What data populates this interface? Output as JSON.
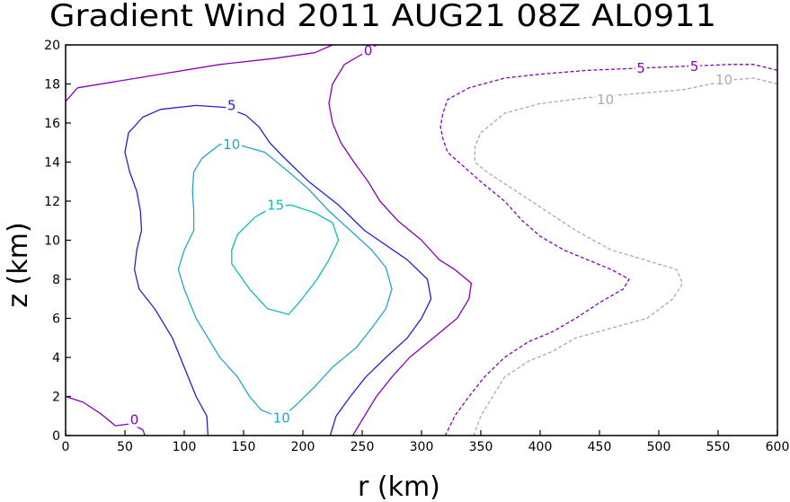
{
  "chart_data": {
    "type": "contour",
    "title": "Gradient Wind 2011 AUG21 08Z  AL0911",
    "xlabel": "r (km)",
    "ylabel": "z (km)",
    "xlim": [
      0,
      600
    ],
    "ylim": [
      0,
      20
    ],
    "x_ticks": [
      "0",
      "50",
      "100",
      "150",
      "200",
      "250",
      "300",
      "350",
      "400",
      "450",
      "500",
      "550",
      "600"
    ],
    "y_ticks": [
      "0",
      "2",
      "4",
      "6",
      "8",
      "10",
      "12",
      "14",
      "16",
      "18",
      "20"
    ],
    "contours": [
      {
        "level": "0",
        "style": "solid",
        "color": "#8800bb",
        "segment": "upper-left",
        "points": [
          [
            0,
            17.1
          ],
          [
            10,
            17.8
          ],
          [
            40,
            18.1
          ],
          [
            80,
            18.5
          ],
          [
            130,
            19.0
          ],
          [
            175,
            19.3
          ],
          [
            210,
            19.6
          ],
          [
            225,
            20.0
          ]
        ],
        "label_at": [
          null
        ]
      },
      {
        "level": "0",
        "style": "solid",
        "color": "#8800bb",
        "segment": "lower-left",
        "points": [
          [
            0,
            2.0
          ],
          [
            15,
            1.7
          ],
          [
            30,
            1.1
          ],
          [
            42,
            0.5
          ],
          [
            55,
            0.6
          ],
          [
            65,
            0.3
          ],
          [
            67,
            0
          ]
        ],
        "label_at": [
          [
            58,
            0.8
          ]
        ]
      },
      {
        "level": "0",
        "style": "solid",
        "color": "#8800bb",
        "segment": "outer",
        "points": [
          [
            262,
            20.0
          ],
          [
            255,
            19.7
          ],
          [
            235,
            19.0
          ],
          [
            225,
            18.0
          ],
          [
            222,
            17.0
          ],
          [
            225,
            16.0
          ],
          [
            232,
            15.0
          ],
          [
            243,
            14.0
          ],
          [
            255,
            13.0
          ],
          [
            265,
            12.0
          ],
          [
            280,
            11.0
          ],
          [
            300,
            10.0
          ],
          [
            315,
            9.0
          ],
          [
            328,
            8.5
          ],
          [
            342,
            7.8
          ],
          [
            340,
            7.0
          ],
          [
            330,
            6.0
          ],
          [
            310,
            5.0
          ],
          [
            290,
            4.0
          ],
          [
            275,
            3.0
          ],
          [
            262,
            2.0
          ],
          [
            252,
            1.0
          ],
          [
            242,
            0
          ]
        ],
        "label_at": [
          [
            255,
            19.7
          ]
        ]
      },
      {
        "level": "5",
        "style": "solid",
        "color": "#2222cc",
        "points": [
          [
            120,
            0
          ],
          [
            119,
            1.0
          ],
          [
            110,
            2.0
          ],
          [
            100,
            3.5
          ],
          [
            90,
            5.0
          ],
          [
            75,
            6.5
          ],
          [
            62,
            7.5
          ],
          [
            58,
            8.5
          ],
          [
            60,
            9.5
          ],
          [
            64,
            10.5
          ],
          [
            63,
            11.5
          ],
          [
            60,
            12.5
          ],
          [
            54,
            13.5
          ],
          [
            50,
            14.5
          ],
          [
            53,
            15.5
          ],
          [
            65,
            16.3
          ],
          [
            80,
            16.7
          ],
          [
            110,
            16.9
          ],
          [
            135,
            16.8
          ],
          [
            152,
            16.4
          ],
          [
            163,
            15.8
          ],
          [
            172,
            15.0
          ],
          [
            183,
            14.3
          ],
          [
            205,
            13.0
          ],
          [
            230,
            11.8
          ],
          [
            252,
            10.5
          ],
          [
            288,
            9.0
          ],
          [
            305,
            8.0
          ],
          [
            308,
            7.0
          ],
          [
            300,
            6.0
          ],
          [
            288,
            5.0
          ],
          [
            270,
            4.0
          ],
          [
            253,
            3.0
          ],
          [
            240,
            2.0
          ],
          [
            228,
            1.0
          ],
          [
            223,
            0
          ]
        ],
        "label_at": [
          [
            140,
            16.9
          ]
        ]
      },
      {
        "level": "10",
        "style": "solid",
        "color": "#22a6cc",
        "points": [
          [
            182,
            0.9
          ],
          [
            165,
            1.3
          ],
          [
            155,
            2.0
          ],
          [
            145,
            3.0
          ],
          [
            130,
            4.0
          ],
          [
            120,
            5.0
          ],
          [
            110,
            6.0
          ],
          [
            100,
            7.5
          ],
          [
            95,
            8.5
          ],
          [
            100,
            9.5
          ],
          [
            108,
            10.5
          ],
          [
            108,
            11.5
          ],
          [
            107,
            12.5
          ],
          [
            108,
            13.5
          ],
          [
            115,
            14.2
          ],
          [
            130,
            14.9
          ],
          [
            145,
            14.9
          ],
          [
            168,
            14.5
          ],
          [
            188,
            13.5
          ],
          [
            205,
            12.6
          ],
          [
            222,
            11.5
          ],
          [
            240,
            10.5
          ],
          [
            258,
            9.5
          ],
          [
            270,
            8.6
          ],
          [
            275,
            7.5
          ],
          [
            270,
            6.5
          ],
          [
            258,
            5.5
          ],
          [
            245,
            4.5
          ],
          [
            225,
            3.5
          ],
          [
            210,
            2.5
          ],
          [
            195,
            1.6
          ],
          [
            182,
            0.9
          ]
        ],
        "label_at": [
          [
            140,
            14.9
          ],
          [
            182,
            0.9
          ]
        ]
      },
      {
        "level": "15",
        "style": "solid",
        "color": "#11bbbb",
        "points": [
          [
            175,
            11.7
          ],
          [
            160,
            11.2
          ],
          [
            145,
            10.3
          ],
          [
            140,
            9.5
          ],
          [
            140,
            8.8
          ],
          [
            155,
            7.5
          ],
          [
            170,
            6.5
          ],
          [
            188,
            6.2
          ],
          [
            198,
            6.9
          ],
          [
            212,
            8.0
          ],
          [
            222,
            9.0
          ],
          [
            230,
            10.0
          ],
          [
            225,
            10.9
          ],
          [
            210,
            11.4
          ],
          [
            190,
            11.8
          ],
          [
            175,
            11.7
          ]
        ],
        "label_at": [
          [
            177,
            11.8
          ]
        ]
      },
      {
        "level": "-5",
        "style": "dashed",
        "color": "#8800bb",
        "points": [
          [
            600,
            18.7
          ],
          [
            580,
            19.0
          ],
          [
            560,
            19.0
          ],
          [
            520,
            18.9
          ],
          [
            480,
            18.8
          ],
          [
            440,
            18.7
          ],
          [
            400,
            18.5
          ],
          [
            370,
            18.3
          ],
          [
            340,
            17.8
          ],
          [
            322,
            17.2
          ],
          [
            318,
            16.5
          ],
          [
            316,
            15.8
          ],
          [
            318,
            15.2
          ],
          [
            322,
            14.5
          ],
          [
            335,
            13.8
          ],
          [
            350,
            13.0
          ],
          [
            370,
            12.0
          ],
          [
            385,
            11.0
          ],
          [
            400,
            10.2
          ],
          [
            420,
            9.5
          ],
          [
            440,
            9.0
          ],
          [
            460,
            8.5
          ],
          [
            475,
            8.0
          ],
          [
            470,
            7.5
          ],
          [
            450,
            6.8
          ],
          [
            430,
            6.0
          ],
          [
            410,
            5.3
          ],
          [
            390,
            4.8
          ],
          [
            370,
            4.0
          ],
          [
            353,
            3.0
          ],
          [
            340,
            2.0
          ],
          [
            328,
            1.0
          ],
          [
            320,
            0
          ]
        ],
        "label_at": [
          [
            530,
            18.9
          ],
          [
            485,
            18.8
          ]
        ]
      },
      {
        "level": "-10",
        "style": "dashed",
        "color": "#aaaaaa",
        "points": [
          [
            600,
            18.0
          ],
          [
            580,
            18.3
          ],
          [
            560,
            18.2
          ],
          [
            520,
            17.7
          ],
          [
            480,
            17.5
          ],
          [
            440,
            17.3
          ],
          [
            400,
            17.0
          ],
          [
            370,
            16.5
          ],
          [
            350,
            15.5
          ],
          [
            345,
            14.8
          ],
          [
            345,
            14.0
          ],
          [
            355,
            13.5
          ],
          [
            380,
            12.5
          ],
          [
            405,
            11.5
          ],
          [
            430,
            10.5
          ],
          [
            460,
            9.5
          ],
          [
            488,
            9.0
          ],
          [
            515,
            8.5
          ],
          [
            520,
            7.8
          ],
          [
            512,
            7.0
          ],
          [
            490,
            6.0
          ],
          [
            460,
            5.5
          ],
          [
            430,
            5.0
          ],
          [
            410,
            4.3
          ],
          [
            390,
            3.8
          ],
          [
            370,
            3.0
          ],
          [
            360,
            2.0
          ],
          [
            350,
            1.0
          ],
          [
            344,
            0
          ]
        ],
        "label_at": [
          [
            455,
            17.2
          ],
          [
            555,
            18.2
          ]
        ]
      }
    ]
  }
}
